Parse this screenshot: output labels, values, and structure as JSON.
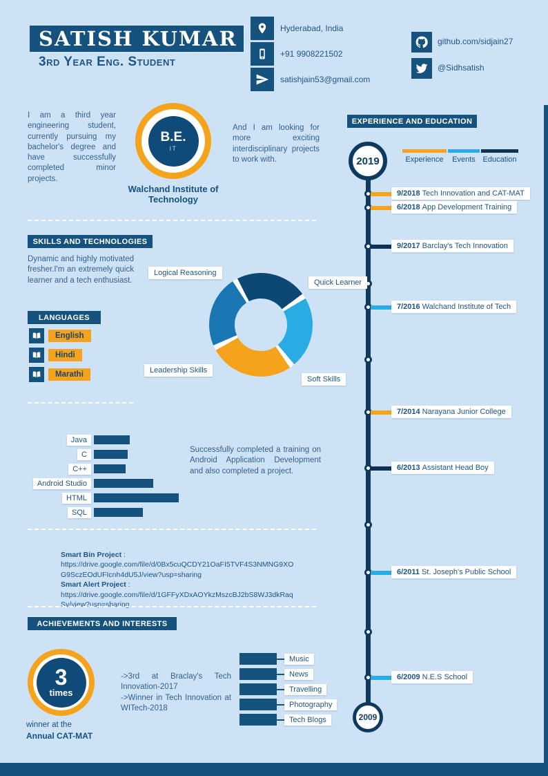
{
  "colors": {
    "background": "#cee2f6",
    "banner_navy": "#15537e",
    "timeline_navy": "#0e3a5e",
    "dark_navy": "#0d3354",
    "orange": "#f5a31c",
    "light_blue": "#29ace3",
    "medium_blue": "#1b77b4",
    "body_text": "#33618e",
    "heading_text": "#14527f"
  },
  "header": {
    "name": "SATISH KUMAR",
    "subtitle": "3rd Year Eng. Student",
    "contacts": [
      {
        "icon": "location-icon",
        "text": "Hyderabad, India"
      },
      {
        "icon": "phone-icon",
        "text": "+91 9908221502"
      },
      {
        "icon": "email-icon",
        "text": "satishjain53@gmail.com"
      }
    ],
    "social": [
      {
        "icon": "github-icon",
        "text": "github.com/sidjain27"
      },
      {
        "icon": "twitter-icon",
        "text": "@Sidhsatish"
      }
    ]
  },
  "about": {
    "left_text": "I am a third year engineering student, currently pursuing my bachelor's degree and have successfully completed minor projects.",
    "degree": "B.E.",
    "degree_field": "IT",
    "institute": "Walchand Institute of Technology",
    "right_text": "And I am looking for more exciting interdisciplinary projects to work with."
  },
  "skills": {
    "banner": "SKILLS AND TECHNOLOGIES",
    "intro": "Dynamic and highly motivated fresher.I'm an extremely quick learner and a tech enthusiast."
  },
  "languages": {
    "banner": "LANGUAGES",
    "items": [
      {
        "icon": "language-icon",
        "label": "English"
      },
      {
        "icon": "language-icon",
        "label": "Hindi"
      },
      {
        "icon": "language-icon",
        "label": "Marathi"
      }
    ]
  },
  "android_note": "Successfully completed a training on Android Application Development and also completed a project.",
  "projects": {
    "separator": " : ",
    "items": [
      {
        "name": "Smart Bin Project",
        "url": "https://drive.google.com/file/d/0Bx5cuQCDY21OaFI5TVF4S3NMNG9XOG9SczEOdUFIcnh4dU5J/view?usp=sharing"
      },
      {
        "name": "Smart Alert Project",
        "url": "https://drive.google.com/file/d/1GFFyXDxAOYkzMszcBJ2bS8WJ3dkRaqSv/view?usp=sharing"
      }
    ]
  },
  "achievements": {
    "banner": "ACHIEVEMENTS AND INTERESTS",
    "badge_number": "3",
    "badge_unit": "times",
    "caption_line1": "winner at the",
    "caption_line2": "Annual CAT-MAT",
    "items": [
      "->3rd at Braclay's Tech Innovation-2017",
      "->Winner in Tech Innovation at WITech-2018"
    ]
  },
  "interests": {
    "items": [
      "Music",
      "News",
      "Travelling",
      "Photography",
      "Tech Blogs"
    ]
  },
  "experience": {
    "banner": "EXPERIENCE AND EDUCATION",
    "legend": [
      {
        "label": "Experience",
        "color": "#f5a31c"
      },
      {
        "label": "Events",
        "color": "#29ace3"
      },
      {
        "label": "Education",
        "color": "#0d3354"
      }
    ],
    "start_year": "2019",
    "end_year": "2009",
    "events": [
      {
        "date": "9/2018",
        "title": "Tech Innovation and CAT-MAT",
        "color": "#f5a31c"
      },
      {
        "date": "6/2018",
        "title": "App Development Training",
        "color": "#f5a31c"
      },
      {
        "date": "9/2017",
        "title": "Barclay's Tech Innovation",
        "color": "#0d3354"
      },
      {
        "date": "7/2016",
        "title": "Walchand Institute of Tech",
        "color": "#29ace3"
      },
      {
        "date": "7/2014",
        "title": "Narayana Junior College",
        "color": "#f5a31c"
      },
      {
        "date": "6/2013",
        "title": "Assistant Head Boy",
        "color": "#0d3354"
      },
      {
        "date": "6/2011",
        "title": "St. Joseph's Public School",
        "color": "#29ace3"
      },
      {
        "date": "6/2009",
        "title": "N.E.S School",
        "color": "#29ace3"
      }
    ]
  },
  "chart_data": [
    {
      "type": "pie",
      "subtype": "donut",
      "title": "Skills donut",
      "labels": [
        "Logical Reasoning",
        "Quick Learner",
        "Soft Skills",
        "Leadership Skills"
      ],
      "values": [
        24,
        24,
        28,
        24
      ],
      "colors": [
        "#0d4875",
        "#29ace3",
        "#f5a31c",
        "#1b77b4"
      ],
      "rotation": -30,
      "legend_position": "around"
    },
    {
      "type": "bar",
      "title": "Technologies proficiency",
      "orientation": "horizontal",
      "categories": [
        "Java",
        "C",
        "C++",
        "Android Studio",
        "HTML",
        "SQL"
      ],
      "values": [
        42,
        40,
        37,
        70,
        100,
        58
      ],
      "bar_color": "#15537e",
      "xlim": [
        0,
        100
      ],
      "grid": false
    }
  ]
}
